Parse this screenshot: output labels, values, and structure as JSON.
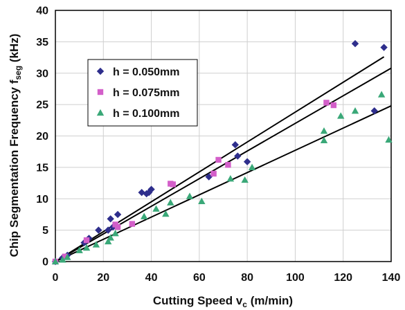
{
  "chart_data": {
    "type": "scatter",
    "xlabel": "Cutting Speed v",
    "xlabel_sub": "c",
    "xlabel_unit": " (m/min)",
    "ylabel": "Chip Segmentation Frequency f",
    "ylabel_sub": "seg",
    "ylabel_unit": " (kHz)",
    "xlim": [
      0,
      140
    ],
    "ylim": [
      0,
      40
    ],
    "xticks": [
      0,
      20,
      40,
      60,
      80,
      100,
      120,
      140
    ],
    "yticks": [
      0,
      5,
      10,
      15,
      20,
      25,
      30,
      35,
      40
    ],
    "grid": true,
    "legend_position": "upper-left",
    "series": [
      {
        "name": "h = 0.050mm",
        "marker": "diamond",
        "color": "#2e2e8c",
        "points": [
          [
            0,
            0
          ],
          [
            3,
            0.6
          ],
          [
            5,
            1.0
          ],
          [
            12,
            3.0
          ],
          [
            14,
            3.7
          ],
          [
            18,
            5.0
          ],
          [
            22,
            5.0
          ],
          [
            23,
            6.8
          ],
          [
            24,
            5.5
          ],
          [
            26,
            7.5
          ],
          [
            36,
            11.0
          ],
          [
            38,
            10.8
          ],
          [
            39,
            11.0
          ],
          [
            40,
            11.5
          ],
          [
            64,
            13.5
          ],
          [
            75,
            18.6
          ],
          [
            76,
            16.8
          ],
          [
            80,
            15.9
          ],
          [
            125,
            34.7
          ],
          [
            133,
            24.0
          ],
          [
            137,
            34.1
          ]
        ]
      },
      {
        "name": "h = 0.075mm",
        "marker": "square",
        "color": "#d35fc9",
        "points": [
          [
            0,
            0
          ],
          [
            4,
            0.8
          ],
          [
            13,
            3.4
          ],
          [
            25,
            5.9
          ],
          [
            26,
            5.5
          ],
          [
            32,
            6.0
          ],
          [
            48,
            12.4
          ],
          [
            49,
            12.3
          ],
          [
            66,
            14.0
          ],
          [
            68,
            16.2
          ],
          [
            72,
            15.4
          ],
          [
            113,
            25.3
          ],
          [
            116,
            24.9
          ]
        ]
      },
      {
        "name": "h = 0.100mm",
        "marker": "triangle",
        "color": "#3aa878",
        "points": [
          [
            0,
            0
          ],
          [
            3,
            0.3
          ],
          [
            5,
            0.7
          ],
          [
            10,
            1.8
          ],
          [
            13,
            2.2
          ],
          [
            17,
            2.7
          ],
          [
            22,
            3.2
          ],
          [
            23,
            3.8
          ],
          [
            25,
            4.5
          ],
          [
            37,
            7.2
          ],
          [
            42,
            8.4
          ],
          [
            46,
            7.6
          ],
          [
            48,
            9.4
          ],
          [
            56,
            10.4
          ],
          [
            61,
            9.6
          ],
          [
            73,
            13.2
          ],
          [
            79,
            13.0
          ],
          [
            82,
            15.0
          ],
          [
            112,
            20.8
          ],
          [
            112,
            19.3
          ],
          [
            119,
            23.2
          ],
          [
            125,
            24.0
          ],
          [
            136,
            26.6
          ],
          [
            139,
            19.4
          ]
        ]
      }
    ],
    "fit_lines": [
      {
        "x": [
          0,
          137
        ],
        "y": [
          0,
          32.6
        ]
      },
      {
        "x": [
          0,
          140
        ],
        "y": [
          0,
          30.8
        ]
      },
      {
        "x": [
          0,
          140
        ],
        "y": [
          0,
          24.8
        ]
      }
    ]
  }
}
